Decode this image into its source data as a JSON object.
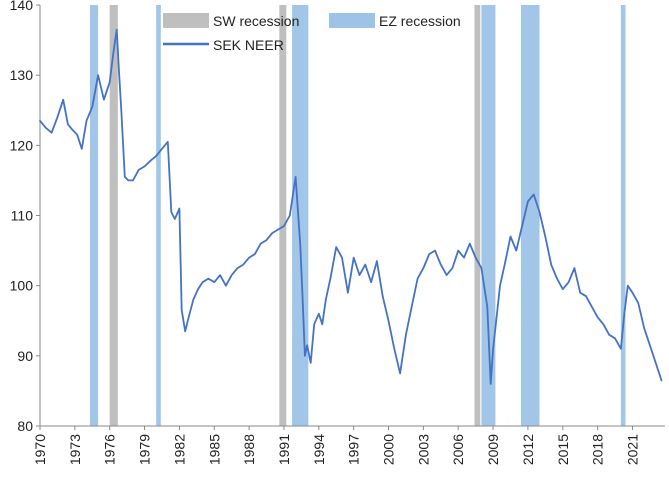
{
  "chart_data": {
    "type": "line",
    "title": "",
    "xlabel": "",
    "ylabel": "",
    "xlim": [
      1970,
      2023.8
    ],
    "ylim": [
      80,
      140
    ],
    "y_ticks": [
      80,
      90,
      100,
      110,
      120,
      130,
      140
    ],
    "x_ticks": [
      1970,
      1973,
      1976,
      1979,
      1982,
      1985,
      1988,
      1991,
      1994,
      1997,
      2000,
      2003,
      2006,
      2009,
      2012,
      2015,
      2018,
      2021
    ],
    "x_tick_labels": [
      "1970",
      "1973",
      "1976",
      "1979",
      "1982",
      "1985",
      "1988",
      "1991",
      "1994",
      "1997",
      "2000",
      "2003",
      "2006",
      "2009",
      "2012",
      "2015",
      "2018",
      "2021"
    ],
    "grid": false,
    "legend_position": "top",
    "colors": {
      "line": "#4472C4",
      "sw_recession": "#BFBFBF",
      "ez_recession": "#9DC3E6",
      "overlap": "#7FA7D6"
    },
    "legend": [
      {
        "label": "SW recession",
        "kind": "sw_band"
      },
      {
        "label": "EZ recession",
        "kind": "ez_band"
      },
      {
        "label": "SEK NEER",
        "kind": "line"
      }
    ],
    "recessions": {
      "sw": [
        [
          1976.0,
          1976.7
        ],
        [
          1990.6,
          1991.2
        ],
        [
          2007.4,
          2007.9
        ]
      ],
      "ez": [
        [
          1974.3,
          1975.0
        ],
        [
          1980.0,
          1980.4
        ],
        [
          1991.7,
          1993.1
        ],
        [
          2008.0,
          2009.2
        ],
        [
          2011.4,
          2013.0
        ],
        [
          2020.0,
          2020.4
        ]
      ]
    },
    "series": [
      {
        "name": "SEK NEER",
        "x": [
          1970.0,
          1970.5,
          1971.0,
          1971.5,
          1972.0,
          1972.4,
          1972.8,
          1973.2,
          1973.6,
          1974.0,
          1974.5,
          1975.0,
          1975.5,
          1976.0,
          1976.3,
          1976.6,
          1976.8,
          1977.0,
          1977.3,
          1977.6,
          1978.0,
          1978.5,
          1979.0,
          1979.5,
          1980.0,
          1980.5,
          1981.0,
          1981.3,
          1981.6,
          1982.0,
          1982.2,
          1982.5,
          1982.8,
          1983.2,
          1983.6,
          1984.0,
          1984.5,
          1985.0,
          1985.5,
          1986.0,
          1986.5,
          1987.0,
          1987.5,
          1988.0,
          1988.5,
          1989.0,
          1989.5,
          1990.0,
          1990.5,
          1991.0,
          1991.5,
          1992.0,
          1992.4,
          1992.6,
          1992.8,
          1993.0,
          1993.3,
          1993.6,
          1994.0,
          1994.3,
          1994.6,
          1995.0,
          1995.5,
          1996.0,
          1996.5,
          1997.0,
          1997.5,
          1998.0,
          1998.5,
          1999.0,
          1999.5,
          2000.0,
          2000.5,
          2001.0,
          2001.5,
          2002.0,
          2002.5,
          2003.0,
          2003.5,
          2004.0,
          2004.5,
          2005.0,
          2005.5,
          2006.0,
          2006.5,
          2007.0,
          2007.5,
          2008.0,
          2008.5,
          2008.8,
          2009.0,
          2009.3,
          2009.6,
          2010.0,
          2010.5,
          2011.0,
          2011.5,
          2012.0,
          2012.5,
          2013.0,
          2013.5,
          2014.0,
          2014.5,
          2015.0,
          2015.5,
          2016.0,
          2016.5,
          2017.0,
          2017.5,
          2018.0,
          2018.5,
          2019.0,
          2019.5,
          2020.0,
          2020.3,
          2020.6,
          2021.0,
          2021.5,
          2022.0,
          2022.5,
          2023.0,
          2023.5
        ],
        "values": [
          123.5,
          122.5,
          121.8,
          124.0,
          126.5,
          123.0,
          122.2,
          121.5,
          119.5,
          123.5,
          125.5,
          130.0,
          126.5,
          129.0,
          133.0,
          136.5,
          130.5,
          125.0,
          115.5,
          115.0,
          115.0,
          116.5,
          117.0,
          117.8,
          118.5,
          119.5,
          120.5,
          110.5,
          109.5,
          111.0,
          96.5,
          93.5,
          95.5,
          98.0,
          99.5,
          100.5,
          101.0,
          100.5,
          101.5,
          100.0,
          101.5,
          102.5,
          103.0,
          104.0,
          104.5,
          106.0,
          106.5,
          107.5,
          108.0,
          108.5,
          110.0,
          115.5,
          106.0,
          98.5,
          90.0,
          91.5,
          89.0,
          94.5,
          96.0,
          94.5,
          98.0,
          101.0,
          105.5,
          104.0,
          99.0,
          104.0,
          101.5,
          103.0,
          100.5,
          103.5,
          98.5,
          95.0,
          91.0,
          87.5,
          93.0,
          97.0,
          101.0,
          102.5,
          104.5,
          105.0,
          103.0,
          101.5,
          102.5,
          105.0,
          104.0,
          106.0,
          104.0,
          102.5,
          97.0,
          86.0,
          91.0,
          95.5,
          100.0,
          103.0,
          107.0,
          105.0,
          108.5,
          112.0,
          113.0,
          110.5,
          107.0,
          103.0,
          101.0,
          99.5,
          100.5,
          102.5,
          99.0,
          98.5,
          97.0,
          95.5,
          94.5,
          93.0,
          92.5,
          91.0,
          96.0,
          100.0,
          99.0,
          97.5,
          94.0,
          91.5,
          89.0,
          86.5
        ]
      }
    ]
  }
}
